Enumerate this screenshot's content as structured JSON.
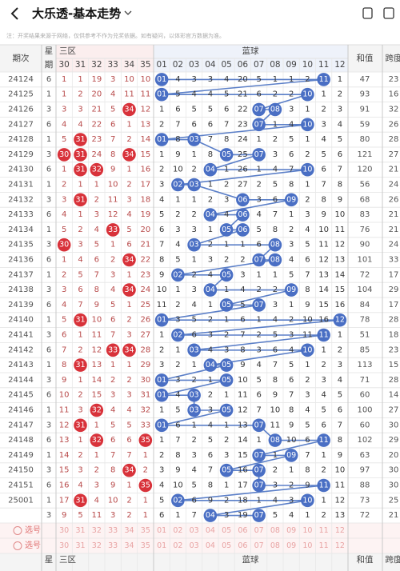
{
  "header": {
    "title": "大乐透-基本走势"
  },
  "note": "注：开奖结果来源于网络，仅供参考不作为兑奖依据。如有疑问，以体彩官方数据为准。",
  "table": {
    "columns": {
      "period": "期次",
      "week": [
        "星",
        "期"
      ],
      "zone_red": "三区",
      "zone_blue": "蓝球",
      "sum": "和值",
      "span": "跨度",
      "red_numbers": [
        "30",
        "31",
        "32",
        "33",
        "34",
        "35"
      ],
      "blue_numbers": [
        "01",
        "02",
        "03",
        "04",
        "05",
        "06",
        "07",
        "08",
        "09",
        "10",
        "11",
        "12"
      ]
    },
    "pick_label": "选号",
    "rows": [
      {
        "period": "24124",
        "week": 6,
        "red": [
          1,
          1,
          19,
          3,
          10,
          10
        ],
        "blue": [
          "01",
          4,
          3,
          3,
          4,
          20,
          5,
          1,
          1,
          2,
          "11",
          1
        ],
        "sum": 47,
        "span": 23
      },
      {
        "period": "24125",
        "week": 1,
        "red": [
          1,
          2,
          20,
          4,
          11,
          11
        ],
        "blue": [
          "01",
          5,
          4,
          4,
          5,
          21,
          6,
          2,
          2,
          "10",
          1,
          2
        ],
        "sum": 93,
        "span": 16
      },
      {
        "period": "24126",
        "week": 3,
        "red": [
          3,
          3,
          21,
          5,
          "34",
          12
        ],
        "blue": [
          1,
          6,
          5,
          5,
          6,
          22,
          "07",
          "08",
          3,
          1,
          2,
          3
        ],
        "sum": 91,
        "span": 32
      },
      {
        "period": "24127",
        "week": 6,
        "red": [
          4,
          4,
          22,
          6,
          1,
          13
        ],
        "blue": [
          2,
          7,
          6,
          6,
          7,
          23,
          "07",
          1,
          4,
          "10",
          3,
          4
        ],
        "sum": 59,
        "span": 26
      },
      {
        "period": "24128",
        "week": 1,
        "red": [
          5,
          "31",
          23,
          7,
          2,
          14
        ],
        "blue": [
          "01",
          8,
          "03",
          7,
          8,
          24,
          1,
          2,
          5,
          1,
          4,
          5
        ],
        "sum": 80,
        "span": 28
      },
      {
        "period": "24129",
        "week": 3,
        "red": [
          "30",
          "31",
          24,
          8,
          "34",
          15
        ],
        "blue": [
          1,
          9,
          1,
          8,
          "05",
          25,
          "07",
          3,
          6,
          2,
          5,
          6
        ],
        "sum": 121,
        "span": 27
      },
      {
        "period": "24130",
        "week": 6,
        "red": [
          1,
          "31",
          "32",
          9,
          1,
          16
        ],
        "blue": [
          2,
          10,
          2,
          "04",
          1,
          26,
          1,
          4,
          7,
          "10",
          6,
          7
        ],
        "sum": 120,
        "span": 21
      },
      {
        "period": "24131",
        "week": 1,
        "red": [
          2,
          1,
          1,
          10,
          2,
          17
        ],
        "blue": [
          3,
          "02",
          "03",
          1,
          2,
          27,
          2,
          5,
          8,
          1,
          7,
          8
        ],
        "sum": 56,
        "span": 24
      },
      {
        "period": "24132",
        "week": 3,
        "red": [
          3,
          "31",
          2,
          11,
          3,
          18
        ],
        "blue": [
          4,
          1,
          1,
          2,
          3,
          "06",
          3,
          6,
          "09",
          2,
          8,
          9
        ],
        "sum": 68,
        "span": 26
      },
      {
        "period": "24133",
        "week": 6,
        "red": [
          4,
          1,
          3,
          12,
          4,
          19
        ],
        "blue": [
          5,
          2,
          2,
          "04",
          4,
          "06",
          4,
          7,
          1,
          3,
          9,
          10
        ],
        "sum": 83,
        "span": 21
      },
      {
        "period": "24134",
        "week": 1,
        "red": [
          5,
          2,
          4,
          "33",
          5,
          20
        ],
        "blue": [
          6,
          3,
          3,
          1,
          "05",
          "06",
          5,
          8,
          2,
          4,
          10,
          11
        ],
        "sum": 76,
        "span": 21
      },
      {
        "period": "24135",
        "week": 3,
        "red": [
          "30",
          3,
          5,
          1,
          6,
          21
        ],
        "blue": [
          7,
          4,
          "03",
          2,
          1,
          1,
          6,
          "08",
          3,
          5,
          11,
          12
        ],
        "sum": 90,
        "span": 24
      },
      {
        "period": "24136",
        "week": 6,
        "red": [
          1,
          4,
          6,
          2,
          "34",
          22
        ],
        "blue": [
          8,
          5,
          1,
          3,
          2,
          2,
          "07",
          "08",
          4,
          6,
          12,
          13
        ],
        "sum": 101,
        "span": 33
      },
      {
        "period": "24137",
        "week": 1,
        "red": [
          2,
          5,
          7,
          3,
          1,
          23
        ],
        "blue": [
          9,
          "02",
          2,
          4,
          "05",
          3,
          1,
          1,
          5,
          7,
          13,
          14
        ],
        "sum": 72,
        "span": 17
      },
      {
        "period": "24138",
        "week": 3,
        "red": [
          3,
          6,
          8,
          4,
          "34",
          24
        ],
        "blue": [
          10,
          1,
          3,
          "04",
          1,
          4,
          2,
          2,
          "09",
          8,
          14,
          15
        ],
        "sum": 104,
        "span": 29
      },
      {
        "period": "24139",
        "week": 6,
        "red": [
          4,
          7,
          9,
          5,
          1,
          25
        ],
        "blue": [
          11,
          2,
          4,
          1,
          "05",
          5,
          "07",
          3,
          1,
          9,
          15,
          16
        ],
        "sum": 84,
        "span": 17
      },
      {
        "period": "24140",
        "week": 1,
        "red": [
          5,
          "31",
          10,
          6,
          2,
          26
        ],
        "blue": [
          "01",
          3,
          5,
          2,
          1,
          6,
          1,
          4,
          2,
          10,
          16,
          "12"
        ],
        "sum": 78,
        "span": 28
      },
      {
        "period": "24141",
        "week": 3,
        "red": [
          6,
          1,
          11,
          7,
          3,
          27
        ],
        "blue": [
          1,
          "02",
          6,
          3,
          2,
          7,
          2,
          5,
          3,
          11,
          "11",
          1
        ],
        "sum": 51,
        "span": 18
      },
      {
        "period": "24142",
        "week": 6,
        "red": [
          7,
          2,
          12,
          "33",
          "34",
          28
        ],
        "blue": [
          2,
          1,
          "03",
          4,
          3,
          8,
          3,
          6,
          4,
          "10",
          1,
          2
        ],
        "sum": 85,
        "span": 23
      },
      {
        "period": "24143",
        "week": 1,
        "red": [
          8,
          "31",
          13,
          1,
          1,
          29
        ],
        "blue": [
          3,
          2,
          1,
          "04",
          "05",
          9,
          4,
          7,
          5,
          1,
          2,
          3
        ],
        "sum": 113,
        "span": 15
      },
      {
        "period": "24144",
        "week": 3,
        "red": [
          9,
          1,
          14,
          2,
          2,
          30
        ],
        "blue": [
          "01",
          3,
          2,
          1,
          "05",
          10,
          5,
          8,
          6,
          2,
          3,
          4
        ],
        "sum": 71,
        "span": 28
      },
      {
        "period": "24145",
        "week": 6,
        "red": [
          10,
          2,
          15,
          3,
          3,
          31
        ],
        "blue": [
          "01",
          4,
          "03",
          2,
          1,
          11,
          6,
          9,
          7,
          3,
          4,
          5
        ],
        "sum": 60,
        "span": 14
      },
      {
        "period": "24146",
        "week": 1,
        "red": [
          11,
          3,
          "32",
          4,
          4,
          32
        ],
        "blue": [
          1,
          5,
          "03",
          3,
          "05",
          12,
          7,
          10,
          8,
          4,
          5,
          6
        ],
        "sum": 100,
        "span": 27
      },
      {
        "period": "24147",
        "week": 3,
        "red": [
          12,
          "31",
          1,
          5,
          5,
          33
        ],
        "blue": [
          "01",
          6,
          1,
          4,
          1,
          13,
          "07",
          11,
          9,
          5,
          6,
          7
        ],
        "sum": 60,
        "span": 30
      },
      {
        "period": "24148",
        "week": 6,
        "red": [
          13,
          1,
          "32",
          6,
          6,
          "35"
        ],
        "blue": [
          1,
          7,
          2,
          5,
          2,
          14,
          1,
          "08",
          10,
          6,
          "11",
          8
        ],
        "sum": 102,
        "span": 29
      },
      {
        "period": "24149",
        "week": 1,
        "red": [
          14,
          2,
          1,
          7,
          7,
          1
        ],
        "blue": [
          2,
          8,
          3,
          6,
          3,
          15,
          "07",
          1,
          "09",
          7,
          1,
          9
        ],
        "sum": 63,
        "span": 20
      },
      {
        "period": "24150",
        "week": 3,
        "red": [
          15,
          3,
          2,
          8,
          "34",
          2
        ],
        "blue": [
          3,
          9,
          4,
          7,
          "05",
          16,
          "07",
          2,
          1,
          8,
          2,
          10
        ],
        "sum": 97,
        "span": 30
      },
      {
        "period": "24151",
        "week": 6,
        "red": [
          16,
          4,
          3,
          9,
          1,
          "35"
        ],
        "blue": [
          4,
          10,
          5,
          8,
          1,
          17,
          "07",
          3,
          2,
          9,
          "11",
          11
        ],
        "sum": 88,
        "span": 30
      },
      {
        "period": "25001",
        "week": 1,
        "red": [
          17,
          "31",
          4,
          10,
          2,
          1
        ],
        "blue": [
          5,
          "02",
          6,
          9,
          2,
          18,
          1,
          4,
          3,
          "10",
          1,
          12
        ],
        "sum": 73,
        "span": 25
      },
      {
        "period": null,
        "week": 3,
        "red": [
          9,
          5,
          11,
          3,
          2,
          1
        ],
        "blue": [
          6,
          1,
          7,
          "04",
          3,
          19,
          "07",
          5,
          4,
          1,
          2,
          13
        ],
        "sum": 72,
        "span": 21
      }
    ]
  }
}
